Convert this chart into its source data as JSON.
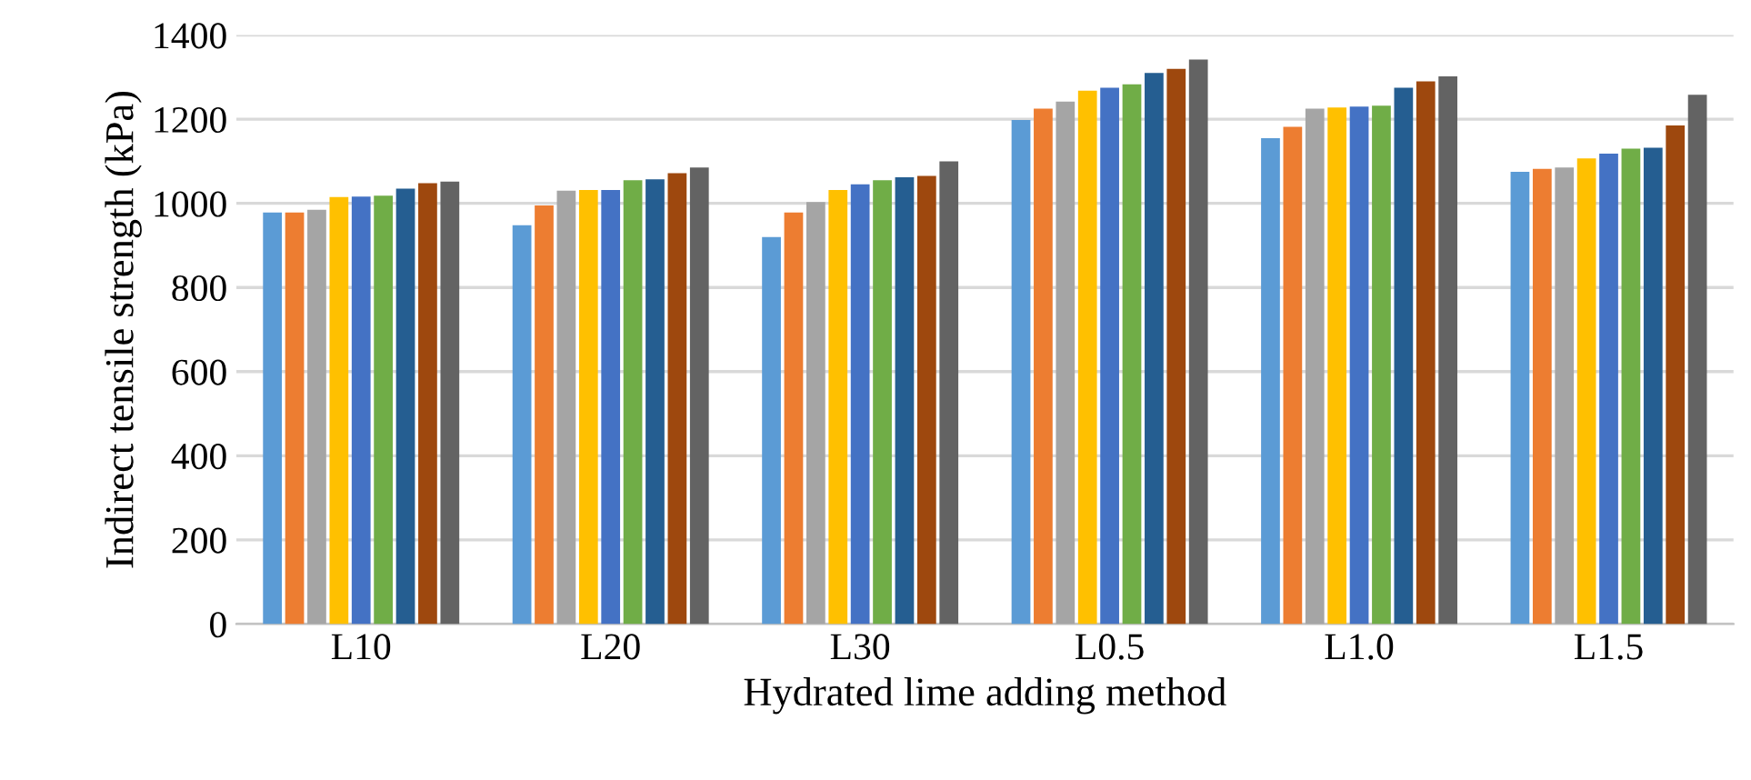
{
  "chart_data": {
    "type": "bar",
    "xlabel": "Hydrated lime adding method",
    "ylabel": "Indirect tensile strength (kPa)",
    "categories": [
      "L10",
      "L20",
      "L30",
      "L0.5",
      "L1.0",
      "L1.5"
    ],
    "series": [
      {
        "color": "#5b9bd5",
        "values": [
          978,
          948,
          920,
          1198,
          1155,
          1075
        ]
      },
      {
        "color": "#ed7d31",
        "values": [
          978,
          995,
          978,
          1225,
          1182,
          1082
        ]
      },
      {
        "color": "#a5a5a5",
        "values": [
          985,
          1030,
          1003,
          1242,
          1225,
          1085
        ]
      },
      {
        "color": "#ffc000",
        "values": [
          1015,
          1032,
          1032,
          1268,
          1228,
          1107
        ]
      },
      {
        "color": "#4472c4",
        "values": [
          1016,
          1032,
          1045,
          1275,
          1230,
          1118
        ]
      },
      {
        "color": "#70ad47",
        "values": [
          1018,
          1055,
          1055,
          1283,
          1232,
          1130
        ]
      },
      {
        "color": "#255e91",
        "values": [
          1035,
          1057,
          1062,
          1310,
          1275,
          1132
        ]
      },
      {
        "color": "#9e480e",
        "values": [
          1048,
          1072,
          1065,
          1320,
          1290,
          1185
        ]
      },
      {
        "color": "#636363",
        "values": [
          1052,
          1085,
          1100,
          1342,
          1302,
          1258
        ]
      }
    ],
    "ylim": [
      0,
      1400
    ],
    "yticks": [
      0,
      200,
      400,
      600,
      800,
      1000,
      1200,
      1400
    ],
    "grid": "y",
    "legend": false
  }
}
